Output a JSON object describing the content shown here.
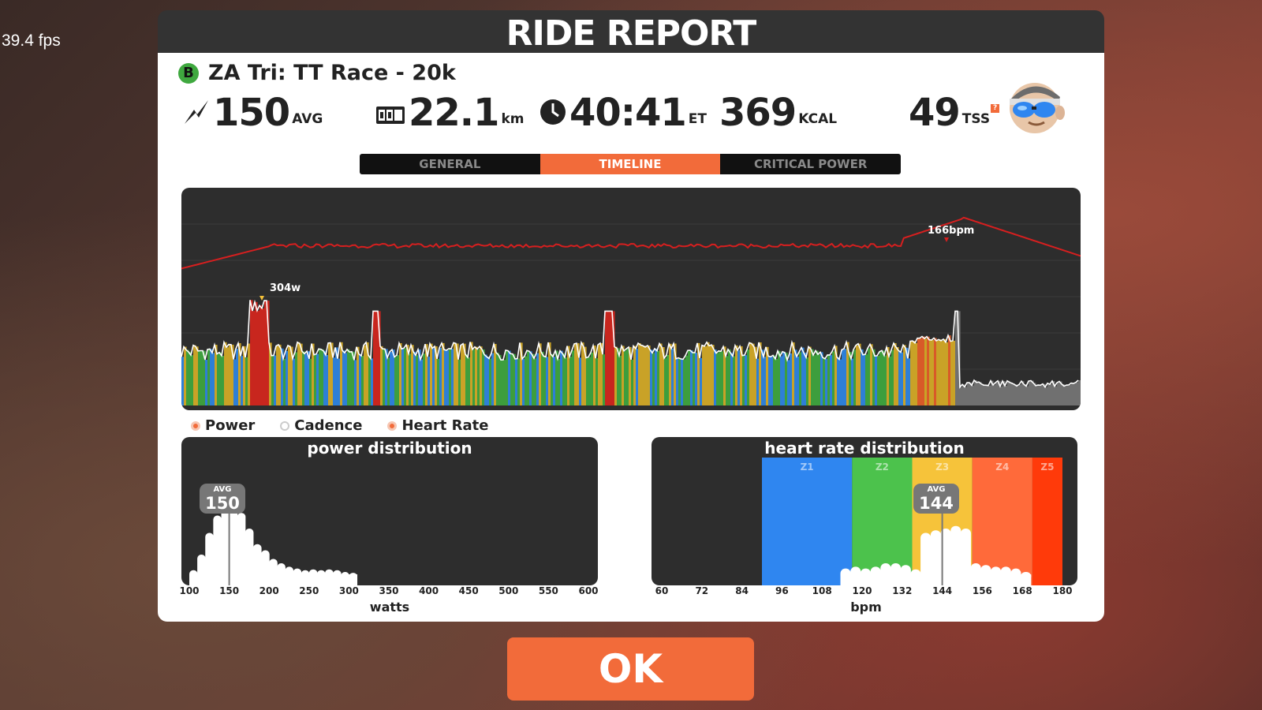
{
  "hud": {
    "fps": "39.4 fps"
  },
  "header": {
    "title": "RIDE REPORT"
  },
  "ride": {
    "category": "B",
    "name": "ZA Tri: TT Race - 20k"
  },
  "stats": {
    "power": {
      "value": "150",
      "unit": "AVG"
    },
    "distance": {
      "value": "22.1",
      "unit": "km"
    },
    "time": {
      "value": "40:41",
      "unit": "ET"
    },
    "calories": {
      "value": "369",
      "unit": "KCAL"
    },
    "tss": {
      "value": "49",
      "unit": "TSS"
    }
  },
  "tabs": [
    {
      "label": "GENERAL",
      "active": false
    },
    {
      "label": "TIMELINE",
      "active": true
    },
    {
      "label": "CRITICAL POWER",
      "active": false
    }
  ],
  "timeline": {
    "peak_hr_label": "166bpm",
    "peak_power_label": "304w",
    "colors": {
      "hr_line": "#d61f1f",
      "power_line": "#ffffff",
      "z1": "#2e7fd6",
      "z2": "#3d9e3d",
      "z3": "#c9a227",
      "z4": "#d85a28",
      "z5": "#c8261e",
      "cooldown": "#707070"
    }
  },
  "legend": [
    {
      "label": "Power",
      "on": true
    },
    {
      "label": "Cadence",
      "on": false
    },
    {
      "label": "Heart Rate",
      "on": true
    }
  ],
  "chart_data": [
    {
      "type": "bar",
      "title": "power distribution",
      "xlabel": "watts",
      "xlim": [
        100,
        600
      ],
      "x_ticks": [
        "100",
        "150",
        "200",
        "250",
        "300",
        "350",
        "400",
        "450",
        "500",
        "550",
        "600"
      ],
      "x": [
        105,
        115,
        125,
        135,
        145,
        155,
        165,
        175,
        185,
        195,
        205,
        215,
        225,
        235,
        245,
        255,
        265,
        275,
        285,
        295,
        305
      ],
      "values": [
        0.12,
        0.3,
        0.55,
        0.75,
        0.92,
        1.0,
        0.78,
        0.6,
        0.42,
        0.35,
        0.25,
        0.2,
        0.16,
        0.14,
        0.12,
        0.13,
        0.12,
        0.13,
        0.12,
        0.1,
        0.09
      ],
      "avg": {
        "label": "AVG",
        "value": "150",
        "x": 150
      }
    },
    {
      "type": "bar",
      "title": "heart rate distribution",
      "xlabel": "bpm",
      "xlim": [
        60,
        180
      ],
      "x_ticks": [
        "60",
        "72",
        "84",
        "96",
        "108",
        "120",
        "132",
        "144",
        "156",
        "168",
        "180"
      ],
      "zones": [
        {
          "name": "Z1",
          "from": 90,
          "to": 117,
          "color": "#2f86f0"
        },
        {
          "name": "Z2",
          "from": 117,
          "to": 135,
          "color": "#4cc24c"
        },
        {
          "name": "Z3",
          "from": 135,
          "to": 153,
          "color": "#f6c33a"
        },
        {
          "name": "Z4",
          "from": 153,
          "to": 171,
          "color": "#ff6a3a"
        },
        {
          "name": "Z5",
          "from": 171,
          "to": 180,
          "color": "#ff3a0a"
        }
      ],
      "x": [
        115,
        118,
        121,
        124,
        127,
        130,
        133,
        136,
        139,
        142,
        145,
        148,
        151,
        154,
        157,
        160,
        163,
        166,
        169
      ],
      "values": [
        0.14,
        0.16,
        0.14,
        0.16,
        0.2,
        0.2,
        0.18,
        0.13,
        0.55,
        0.58,
        0.6,
        0.63,
        0.6,
        0.2,
        0.18,
        0.16,
        0.16,
        0.14,
        0.1
      ],
      "avg": {
        "label": "AVG",
        "value": "144",
        "x": 144
      }
    }
  ],
  "footer": {
    "ok_label": "OK"
  }
}
